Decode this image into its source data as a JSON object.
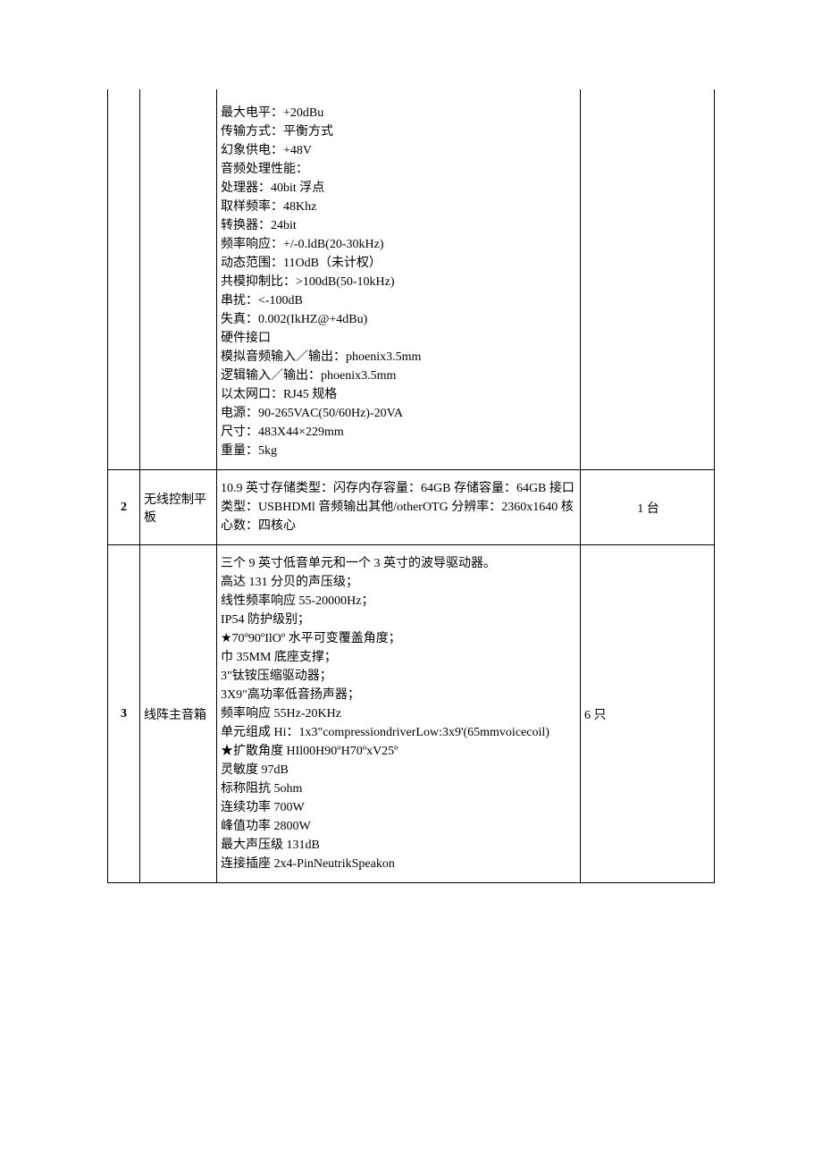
{
  "rows": [
    {
      "num": "",
      "name": "",
      "qty": "",
      "qty_align": "left",
      "desc_lines": [
        "",
        "最大电平：+20dBu",
        "传输方式：平衡方式",
        "幻象供电：+48V",
        "音频处理性能：",
        "处理器：40bit 浮点",
        "取样频率：48Khz",
        "转换器：24bit",
        "频率响应：+/-0.ldB(20-30kHz)",
        "动态范围：11OdB（未计权）",
        "共模抑制比：>100dB(50-10kHz)",
        "串扰：<-100dB",
        "失真：0.002(IkHZ@+4dBu)",
        "硬件接口",
        "模拟音频输入／输出：phoenix3.5mm",
        "逻辑输入／输出：phoenix3.5mm",
        "以太网口：RJ45 规格",
        "电源：90-265VAC(50/60Hz)-20VA",
        "尺寸：483X44×229mm",
        "重量：5kg"
      ]
    },
    {
      "num": "2",
      "name": "无线控制平板",
      "qty": "1 台",
      "qty_align": "center",
      "desc_lines": [
        "10.9 英寸存储类型：闪存内存容量：64GB 存储容量：64GB 接口类型：USBHDMl 音频输出其他/otherOTG 分辨率：2360x1640 核心数：四核心"
      ]
    },
    {
      "num": "3",
      "name": "线阵主音箱",
      "qty": "6 只",
      "qty_align": "left",
      "desc_lines": [
        "三个 9 英寸低音单元和一个 3 英寸的波导驱动器。",
        "高达 131 分贝的声压级；",
        "线性频率响应 55-20000Hz；",
        "IP54 防护级别；",
        "★70º90ºIlOº 水平可变覆盖角度；",
        "巾 35MM 底座支撑；",
        "3\"钛铵压缩驱动器；",
        "3X9\"高功率低音扬声器；",
        "频率响应 55Hz-20KHz",
        "单元组成 Hi：1x3\"compressiondriverLow:3x9'(65mmvoicecoil)",
        "★扩散角度 HIl00H90ºH70ºxV25º",
        "灵敏度 97dB",
        "标称阻抗 5ohm",
        "连续功率 700W",
        "峰值功率 2800W",
        "最大声压级 131dB",
        "连接插座 2x4-PinNeutrikSpeakon"
      ]
    }
  ]
}
